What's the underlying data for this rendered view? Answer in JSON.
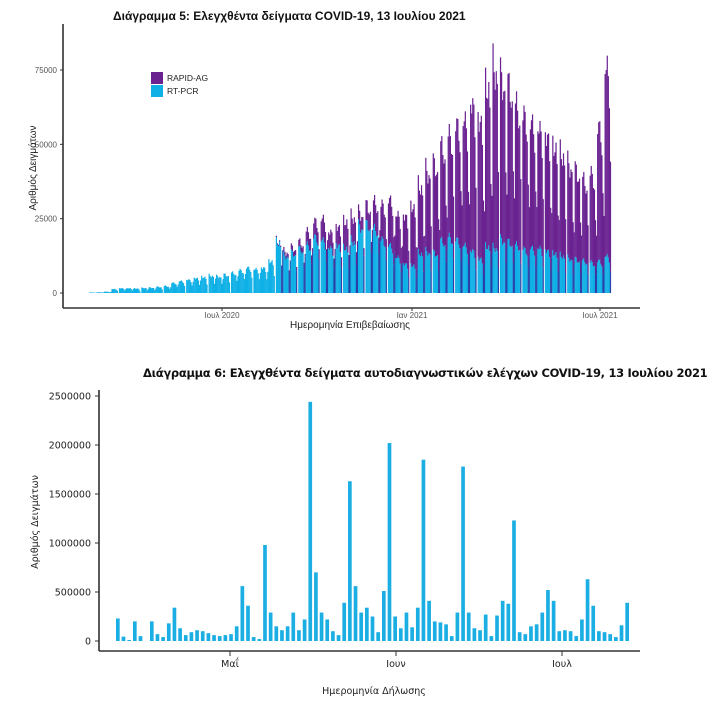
{
  "chart_data": [
    {
      "type": "bar",
      "stacked": true,
      "title": "Διάγραμμα 5: Ελεγχθέντα δείγματα COVID-19, 13 Ιουλίου 2021",
      "xlabel": "Ημερομηνία Επιβεβαίωσης",
      "ylabel": "Αριθμός Δειγμάτων",
      "ylim": [
        0,
        87000
      ],
      "yticks": [
        0,
        25000,
        50000,
        75000
      ],
      "ytick_labels": [
        "0",
        "25000",
        "50000",
        "75000"
      ],
      "xticks": [
        "Ιουλ 2020",
        "Ιαν 2021",
        "Ιουλ 2021"
      ],
      "legend": {
        "position": "top-left",
        "entries": [
          "RAPID-AG",
          "RT-PCR"
        ]
      },
      "colors": {
        "RAPID-AG": "#6a2291",
        "RT-PCR": "#0fb0e6",
        "dip": "#2a3fa8"
      },
      "x_unit": "week",
      "x_start": "2020-03 (approx.)",
      "series": [
        {
          "name": "RT-PCR",
          "weekly_peak": [
            200,
            300,
            500,
            1500,
            1800,
            1800,
            1700,
            1900,
            2000,
            2300,
            2600,
            3800,
            4500,
            5000,
            5600,
            6000,
            6500,
            6200,
            6800,
            7500,
            8500,
            9500,
            9000,
            9500,
            12000,
            19000,
            14000,
            15000,
            16500,
            18000,
            21000,
            20000,
            17000,
            18000,
            17000,
            19500,
            25000,
            25500,
            24000,
            20000,
            18000,
            13500,
            11000,
            10500,
            15000,
            15500,
            15000,
            19500,
            21000,
            20000,
            18000,
            16000,
            13000,
            17500,
            17000,
            20000,
            19000,
            18000,
            16500,
            17000,
            17000,
            16000,
            15000,
            14000,
            13000,
            12500,
            12000,
            11500,
            12000,
            14000
          ]
        },
        {
          "name": "RAPID-AG",
          "weekly_peak": [
            0,
            0,
            0,
            0,
            0,
            0,
            0,
            0,
            0,
            0,
            0,
            0,
            0,
            0,
            0,
            0,
            0,
            0,
            0,
            0,
            0,
            0,
            0,
            0,
            0,
            500,
            1500,
            2000,
            2500,
            5000,
            6000,
            8000,
            6000,
            7000,
            10000,
            9000,
            5000,
            7000,
            10000,
            13000,
            17000,
            16000,
            18000,
            22000,
            25000,
            30000,
            33000,
            35000,
            38000,
            43000,
            47000,
            55000,
            52000,
            60000,
            67000,
            60000,
            58000,
            52000,
            50000,
            47000,
            45000,
            43000,
            40000,
            38000,
            35000,
            33000,
            30000,
            33000,
            50000,
            71000
          ]
        }
      ],
      "peak_total_approx": 85000
    },
    {
      "type": "bar",
      "title": "Διάγραμμα 6: Ελεγχθέντα δείγματα αυτοδιαγνωστικών ελέγχων COVID-19, 13 Ιουλίου 2021",
      "xlabel": "Ημερομηνία Δήλωσης",
      "ylabel": "Αριθμός Δειγμάτων",
      "ylim": [
        0,
        2500000
      ],
      "yticks": [
        0,
        500000,
        1000000,
        1500000,
        2000000,
        2500000
      ],
      "ytick_labels": [
        "0",
        "500000",
        "1000000",
        "1500000",
        "2000000",
        "2500000"
      ],
      "xticks": [
        "Μαΐ",
        "Ιουν",
        "Ιουλ"
      ],
      "color": "#1aaee3",
      "values": [
        230000,
        45000,
        10000,
        200000,
        50000,
        0,
        200000,
        70000,
        40000,
        180000,
        340000,
        130000,
        60000,
        90000,
        110000,
        100000,
        80000,
        60000,
        50000,
        60000,
        70000,
        150000,
        560000,
        360000,
        40000,
        20000,
        980000,
        290000,
        150000,
        110000,
        150000,
        290000,
        110000,
        220000,
        2440000,
        700000,
        290000,
        220000,
        100000,
        60000,
        390000,
        1630000,
        560000,
        290000,
        340000,
        250000,
        90000,
        510000,
        2020000,
        250000,
        130000,
        290000,
        140000,
        340000,
        1850000,
        410000,
        200000,
        190000,
        170000,
        50000,
        290000,
        1780000,
        290000,
        130000,
        110000,
        270000,
        50000,
        260000,
        410000,
        380000,
        1230000,
        90000,
        70000,
        150000,
        170000,
        290000,
        520000,
        410000,
        100000,
        110000,
        100000,
        50000,
        220000,
        630000,
        360000,
        100000,
        90000,
        70000,
        40000,
        160000,
        390000
      ]
    }
  ]
}
